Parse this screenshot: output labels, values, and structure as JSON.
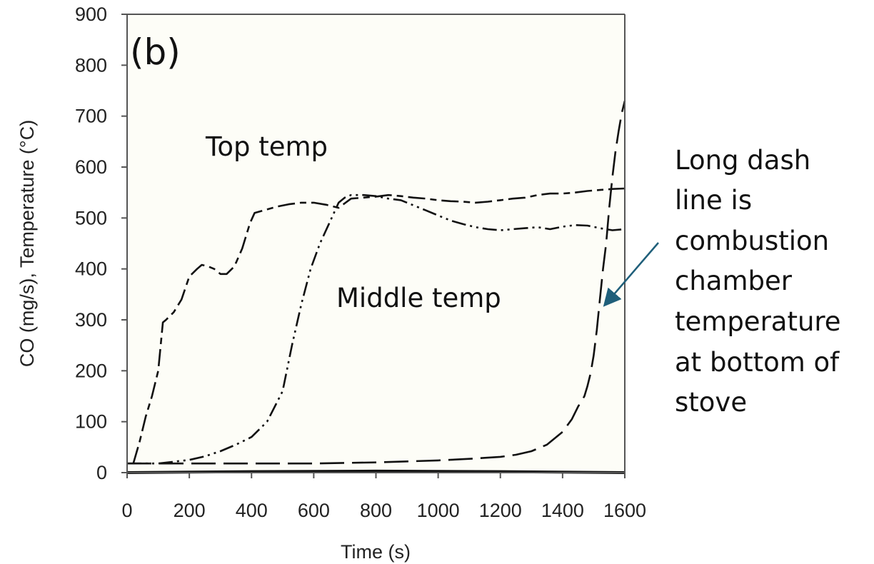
{
  "chart_data": {
    "type": "line",
    "panel_label": "(b)",
    "xlabel": "Time (s)",
    "ylabel": "CO (mg/s), Temperature (°C)",
    "xlim": [
      0,
      1600
    ],
    "ylim": [
      0,
      900
    ],
    "x_ticks": [
      "0",
      "200",
      "400",
      "600",
      "800",
      "1000",
      "1200",
      "1400",
      "1600"
    ],
    "y_ticks": [
      "0",
      "100",
      "200",
      "300",
      "400",
      "500",
      "600",
      "700",
      "800",
      "900"
    ],
    "grid": false,
    "plot_background": "#fdfdf7",
    "series": [
      {
        "name": "Top temp",
        "dash": "long-short",
        "x": [
          20,
          40,
          60,
          80,
          100,
          115,
          125,
          150,
          175,
          200,
          225,
          240,
          260,
          280,
          300,
          320,
          345,
          370,
          395,
          410,
          440,
          480,
          520,
          560,
          600,
          640,
          680,
          720,
          760,
          800,
          840,
          880,
          920,
          960,
          1000,
          1040,
          1080,
          1120,
          1160,
          1200,
          1240,
          1280,
          1320,
          1360,
          1400,
          1440,
          1480,
          1520,
          1560,
          1600
        ],
        "y": [
          18,
          60,
          110,
          150,
          200,
          295,
          300,
          315,
          340,
          385,
          400,
          408,
          405,
          400,
          390,
          390,
          405,
          440,
          490,
          510,
          515,
          522,
          527,
          530,
          530,
          526,
          520,
          538,
          540,
          542,
          545,
          543,
          540,
          538,
          535,
          533,
          532,
          530,
          532,
          535,
          538,
          540,
          545,
          548,
          548,
          550,
          553,
          555,
          557,
          558
        ]
      },
      {
        "name": "Middle temp",
        "dash": "dash-dot-dot",
        "x": [
          0,
          100,
          200,
          250,
          300,
          350,
          400,
          450,
          500,
          530,
          560,
          590,
          620,
          650,
          680,
          700,
          720,
          760,
          800,
          840,
          880,
          920,
          960,
          1000,
          1040,
          1080,
          1120,
          1160,
          1200,
          1240,
          1280,
          1320,
          1360,
          1400,
          1440,
          1480,
          1520,
          1560,
          1600
        ],
        "y": [
          18,
          18,
          25,
          32,
          42,
          55,
          70,
          100,
          160,
          250,
          330,
          400,
          450,
          490,
          530,
          540,
          545,
          545,
          543,
          538,
          535,
          525,
          515,
          505,
          495,
          488,
          482,
          478,
          476,
          478,
          480,
          482,
          478,
          483,
          486,
          485,
          480,
          476,
          478
        ]
      },
      {
        "name": "combustion chamber temperature",
        "dash": "long",
        "x": [
          0,
          100,
          200,
          300,
          400,
          500,
          600,
          700,
          800,
          900,
          1000,
          1100,
          1200,
          1250,
          1300,
          1350,
          1400,
          1430,
          1450,
          1470,
          1480,
          1490,
          1500,
          1510,
          1520,
          1530,
          1540,
          1550,
          1560,
          1570,
          1580,
          1590,
          1600
        ],
        "y": [
          18,
          18,
          18,
          18,
          18,
          18,
          18,
          19,
          20,
          22,
          24,
          27,
          31,
          35,
          42,
          55,
          80,
          105,
          130,
          150,
          170,
          195,
          230,
          280,
          340,
          400,
          450,
          520,
          580,
          630,
          670,
          705,
          730
        ]
      },
      {
        "name": "CO",
        "dash": "solid",
        "x": [
          0,
          400,
          800,
          1200,
          1600
        ],
        "y": [
          0,
          2,
          3,
          2,
          0
        ]
      }
    ],
    "annotations": {
      "top_temp": "Top temp",
      "middle_temp": "Middle temp",
      "long_dash_lines": [
        "Long dash",
        "line is",
        "combustion",
        "chamber",
        "temperature",
        "at bottom of",
        "stove"
      ]
    },
    "arrow_color": "#1f5f7a"
  }
}
